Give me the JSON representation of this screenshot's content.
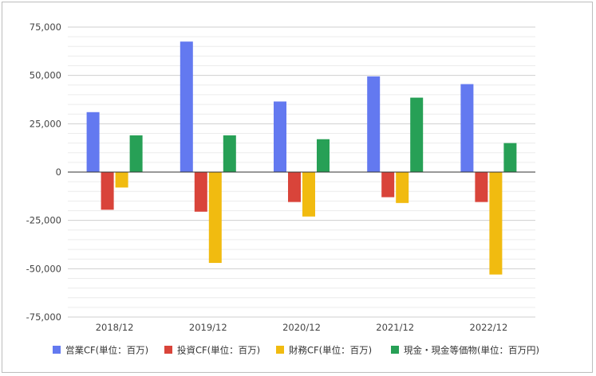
{
  "chart_data": {
    "type": "bar",
    "categories": [
      "2018/12",
      "2019/12",
      "2020/12",
      "2021/12",
      "2022/12"
    ],
    "series": [
      {
        "name": "営業CF(単位：百万)",
        "color": "#6379f0",
        "values": [
          31000,
          67500,
          36500,
          49500,
          45500
        ]
      },
      {
        "name": "投資CF(単位：百万)",
        "color": "#d9443a",
        "values": [
          -19500,
          -20500,
          -15500,
          -13000,
          -15500
        ]
      },
      {
        "name": "財務CF(単位：百万)",
        "color": "#f1bb10",
        "values": [
          -8000,
          -47000,
          -23000,
          -16000,
          -53000
        ]
      },
      {
        "name": "現金・現金等価物(単位：百万円)",
        "color": "#27a056",
        "values": [
          19000,
          19000,
          17000,
          38500,
          15000
        ]
      }
    ],
    "y_ticks": [
      "75,000",
      "50,000",
      "25,000",
      "0",
      "-25,000",
      "-50,000",
      "-75,000"
    ],
    "ylim": [
      -75000,
      75000
    ],
    "grid": true,
    "legend_position": "bottom",
    "title": "",
    "xlabel": "",
    "ylabel": ""
  }
}
